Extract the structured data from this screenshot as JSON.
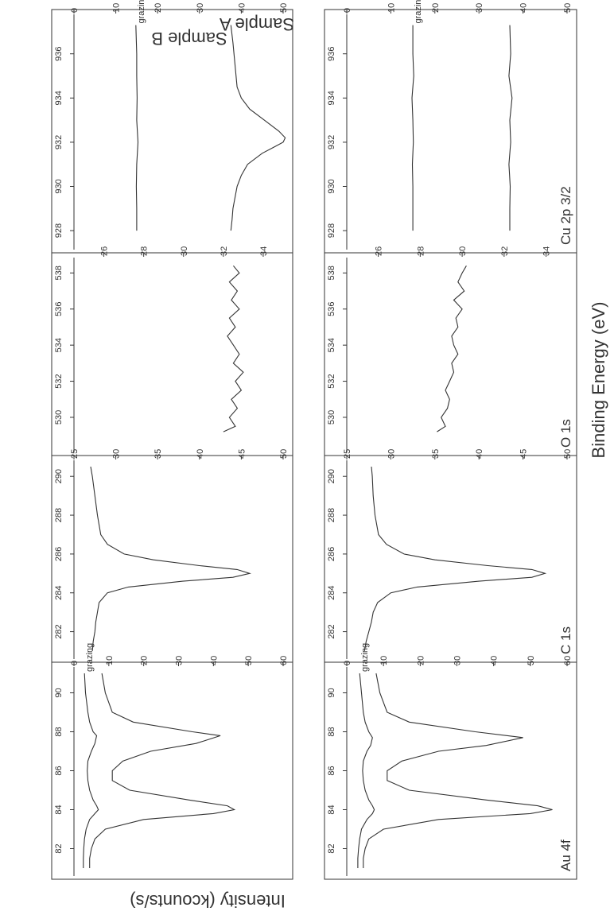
{
  "figure": {
    "xlabel": "Binding Energy (eV)",
    "ylabel": "Intensity (kcounts/s)",
    "sample_labels": [
      "Sample A",
      "Sample B"
    ]
  },
  "chart_data": [
    {
      "type": "line",
      "sample": "Sample A",
      "title": "Au 4f",
      "xlim": [
        91,
        81
      ],
      "ylim": [
        0,
        60
      ],
      "xticks": [
        90,
        88,
        86,
        84,
        82
      ],
      "yticks": [
        0,
        10,
        20,
        30,
        40,
        50,
        60
      ],
      "annotation": "grazing",
      "series": [
        {
          "x": [
            91,
            90,
            89,
            88.5,
            88,
            87.7,
            87.3,
            87,
            86.5,
            86,
            85.5,
            85,
            84.5,
            84.2,
            84,
            83.8,
            83.5,
            83,
            82.5,
            82,
            81.5,
            81
          ],
          "values": [
            8,
            9,
            11,
            17,
            35,
            48,
            38,
            25,
            15,
            11,
            11,
            17,
            38,
            52,
            56,
            50,
            25,
            10,
            6,
            5,
            4.5,
            4.5
          ]
        },
        {
          "name": "grazing",
          "x": [
            91,
            90,
            89,
            88.5,
            88,
            87.7,
            87.3,
            87,
            86.5,
            86,
            85.5,
            85,
            84.5,
            84.2,
            84,
            83.8,
            83.5,
            83,
            82.5,
            82,
            81.5,
            81
          ],
          "values": [
            3.5,
            4,
            4.5,
            5,
            6,
            7,
            6.5,
            5.5,
            4.5,
            4.3,
            4.5,
            5,
            6,
            7,
            7.5,
            7,
            5.5,
            4,
            3.5,
            3.2,
            3,
            3
          ]
        }
      ]
    },
    {
      "type": "line",
      "sample": "Sample A",
      "title": "C 1s",
      "xlim": [
        290.5,
        281
      ],
      "ylim": [
        25,
        50
      ],
      "xticks": [
        290,
        288,
        286,
        284,
        282
      ],
      "yticks": [
        25,
        30,
        35,
        40,
        45,
        50
      ],
      "series": [
        {
          "x": [
            290.5,
            290,
            289,
            288,
            287,
            286.5,
            286,
            285.7,
            285.4,
            285.2,
            285,
            284.8,
            284.6,
            284.3,
            284,
            283.5,
            283,
            282.5,
            282,
            281.5,
            281
          ],
          "values": [
            27.8,
            27.9,
            28,
            28.2,
            28.6,
            29.5,
            31.5,
            35,
            41,
            46,
            47.5,
            46,
            40,
            33,
            30,
            28.5,
            28,
            27.8,
            27.5,
            27.2,
            27
          ]
        }
      ]
    },
    {
      "type": "line",
      "sample": "Sample A",
      "title": "O 1s",
      "xlim": [
        538.5,
        528.5
      ],
      "ylim": [
        24.5,
        35
      ],
      "xticks": [
        538,
        536,
        534,
        532,
        530
      ],
      "yticks": [
        26,
        28,
        30,
        32,
        34
      ],
      "series": [
        {
          "x": [
            538.4,
            538,
            537.5,
            537,
            536.5,
            536,
            535.5,
            535,
            534.5,
            534,
            533.5,
            533,
            532.5,
            532,
            531.5,
            531,
            530.5,
            530,
            529.5,
            529.2
          ],
          "values": [
            30.2,
            30,
            29.8,
            30.1,
            29.6,
            30,
            29.7,
            29.8,
            29.5,
            29.6,
            29.8,
            29.5,
            29.6,
            29.4,
            29.2,
            29.4,
            29.3,
            29,
            29.2,
            28.8
          ]
        }
      ]
    },
    {
      "type": "line",
      "sample": "Sample A",
      "title": "Cu 2p 3/2",
      "xlim": [
        937.5,
        927.5
      ],
      "ylim": [
        0,
        50
      ],
      "xticks": [
        936,
        934,
        932,
        930,
        928
      ],
      "yticks": [
        0,
        10,
        20,
        30,
        40,
        50
      ],
      "annotation": "grazing",
      "series": [
        {
          "x": [
            937.3,
            936,
            935,
            934,
            933,
            932,
            931,
            930,
            929,
            928
          ],
          "values": [
            37,
            37.2,
            36.8,
            37.5,
            37,
            37.2,
            36.8,
            37.1,
            37,
            37
          ]
        },
        {
          "name": "grazing",
          "x": [
            937.3,
            936,
            935,
            934,
            933,
            932,
            931,
            930,
            929,
            928
          ],
          "values": [
            15,
            15,
            15.2,
            14.8,
            15,
            15.1,
            14.9,
            15,
            15,
            15
          ]
        }
      ]
    },
    {
      "type": "line",
      "sample": "Sample B",
      "title": "",
      "xlim": [
        91,
        81
      ],
      "ylim": [
        0,
        60
      ],
      "xticks": [
        90,
        88,
        86,
        84,
        82
      ],
      "yticks": [
        0,
        10,
        20,
        30,
        40,
        50,
        60
      ],
      "annotation": "grazing",
      "series": [
        {
          "x": [
            91,
            90,
            89,
            88.5,
            88,
            87.8,
            87.4,
            87,
            86.5,
            86,
            85.5,
            85,
            84.5,
            84.2,
            84,
            83.8,
            83.5,
            83,
            82.5,
            82,
            81.5,
            81
          ],
          "values": [
            8,
            9,
            11,
            17,
            34,
            42,
            35,
            22,
            14,
            11,
            11,
            16,
            33,
            44,
            46,
            40,
            20,
            9,
            6,
            5,
            4.5,
            4.5
          ]
        },
        {
          "name": "grazing",
          "x": [
            91,
            90,
            89,
            88.5,
            88,
            87.8,
            87.4,
            87,
            86.5,
            86,
            85.5,
            85,
            84.5,
            84.2,
            84,
            83.8,
            83.5,
            83,
            82.5,
            82,
            81.5,
            81
          ],
          "values": [
            3,
            3.3,
            4,
            4.5,
            5.5,
            6.5,
            6,
            5,
            4,
            3.8,
            4,
            4.5,
            5.5,
            6.5,
            7,
            6,
            4.5,
            3.5,
            3,
            2.8,
            2.7,
            2.7
          ]
        }
      ]
    },
    {
      "type": "line",
      "sample": "Sample B",
      "title": "",
      "xlim": [
        290.5,
        281
      ],
      "ylim": [
        25,
        50
      ],
      "xticks": [
        290,
        288,
        286,
        284,
        282
      ],
      "yticks": [
        25,
        30,
        35,
        40,
        45,
        50
      ],
      "series": [
        {
          "x": [
            290.5,
            290,
            289,
            288,
            287,
            286.5,
            286,
            285.7,
            285.4,
            285.2,
            285,
            284.8,
            284.6,
            284.3,
            284,
            283.5,
            283,
            282.5,
            282,
            281.5,
            281
          ],
          "values": [
            27,
            27.2,
            27.5,
            27.8,
            28.2,
            29,
            31,
            34.5,
            40,
            44.5,
            46,
            44,
            38,
            31.5,
            29,
            28,
            27.8,
            27.6,
            27.5,
            27.3,
            27.2
          ]
        }
      ]
    },
    {
      "type": "line",
      "sample": "Sample B",
      "title": "",
      "xlim": [
        538.5,
        528.5
      ],
      "ylim": [
        24.5,
        35
      ],
      "xticks": [
        538,
        536,
        534,
        532,
        530
      ],
      "yticks": [
        26,
        28,
        30,
        32,
        34
      ],
      "series": [
        {
          "x": [
            538.4,
            538,
            537.5,
            537,
            536.5,
            536,
            535.5,
            535,
            534.5,
            534,
            533.5,
            533,
            532.5,
            532,
            531.5,
            531,
            530.5,
            530,
            529.5,
            529.2
          ],
          "values": [
            32.5,
            32.8,
            32.3,
            32.7,
            32.4,
            32.8,
            32.3,
            32.6,
            32.2,
            32.5,
            32.8,
            32.5,
            33,
            32.6,
            32.9,
            32.4,
            32.7,
            32.3,
            32.6,
            32
          ]
        }
      ]
    },
    {
      "type": "line",
      "sample": "Sample B",
      "title": "",
      "xlim": [
        937.5,
        927.5
      ],
      "ylim": [
        0,
        50
      ],
      "xticks": [
        936,
        934,
        932,
        930,
        928
      ],
      "yticks": [
        0,
        10,
        20,
        30,
        40,
        50
      ],
      "annotation": "grazing",
      "series": [
        {
          "x": [
            937.3,
            936.5,
            935.5,
            934.5,
            934,
            933.5,
            933,
            932.5,
            932.2,
            932,
            931.8,
            931.5,
            931,
            930.5,
            930,
            929.5,
            929,
            928.5,
            928
          ],
          "values": [
            37.5,
            38,
            38.5,
            39,
            40,
            42,
            45.5,
            49,
            50.5,
            50,
            48,
            45,
            41.5,
            40,
            39,
            38.5,
            38,
            37.8,
            37.5
          ]
        },
        {
          "name": "grazing",
          "x": [
            937.3,
            936,
            935,
            934,
            933,
            932,
            931,
            930,
            929,
            928
          ],
          "values": [
            14.8,
            15,
            15,
            15.1,
            15,
            15.3,
            15,
            14.9,
            15,
            15
          ]
        }
      ]
    }
  ]
}
